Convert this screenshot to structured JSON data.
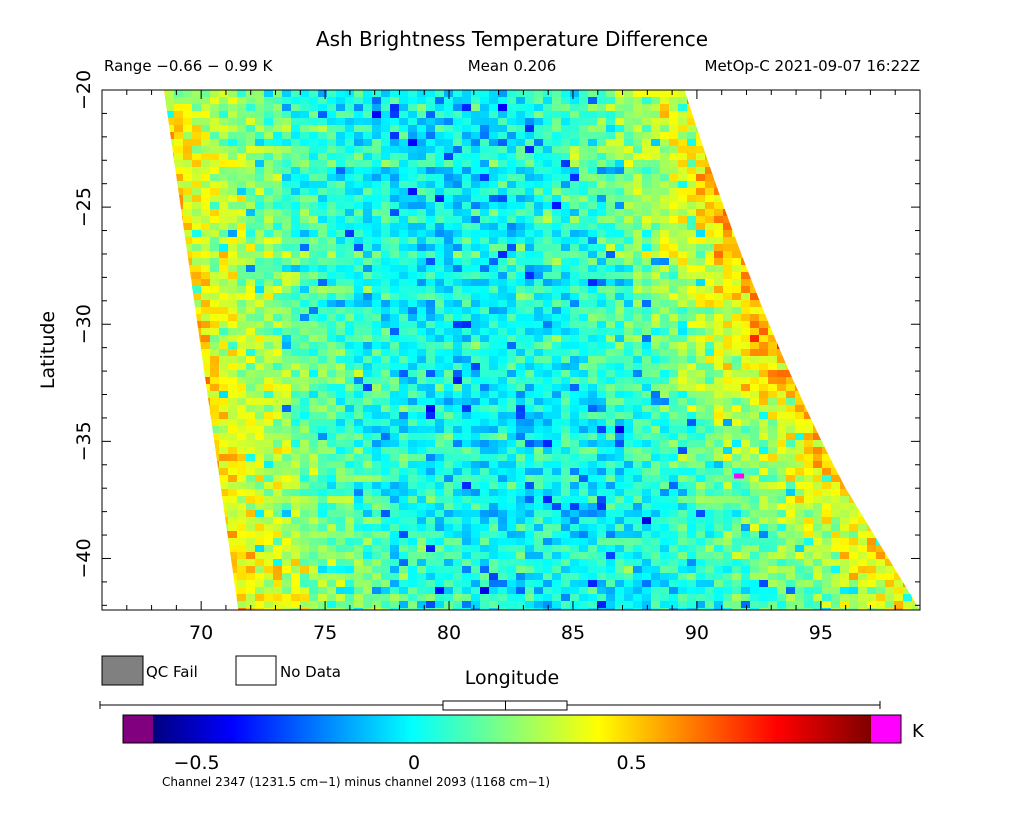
{
  "chart_data": {
    "type": "heatmap",
    "title": "Ash Brightness Temperature Difference",
    "header": {
      "range": "Range −0.66 − 0.99 K",
      "mean": "Mean 0.206",
      "satellite": "MetOp-C 2021-09-07 16:22Z"
    },
    "xlabel": "Longitude",
    "ylabel": "Latitude",
    "xlim": [
      66,
      99
    ],
    "ylim": [
      -42.2,
      -20
    ],
    "xticks": [
      70,
      75,
      80,
      85,
      90,
      95
    ],
    "yticks": [
      -20,
      -25,
      -30,
      -35,
      -40
    ],
    "swath": {
      "top_left": [
        68.5,
        -20
      ],
      "bottom_left": [
        71.5,
        -42.2
      ],
      "top_right": [
        89.5,
        -20
      ],
      "upper_right_mid": [
        92.5,
        -30
      ],
      "lower_right_mid": [
        96,
        -37
      ],
      "bottom_right": [
        99,
        -42.2
      ]
    },
    "value_range": [
      -0.66,
      0.99
    ],
    "mean": 0.206,
    "legend": {
      "qc_fail_label": "QC Fail",
      "no_data_label": "No Data",
      "qc_fail_color": "#808080",
      "no_data_color": "#ffffff"
    },
    "colorbar": {
      "min": -0.6,
      "max": 1.05,
      "under_color": "#800080",
      "over_color": "#ff00ff",
      "ticks": [
        -0.5,
        0,
        0.5
      ],
      "tick_labels": [
        "−0.5",
        "0",
        "0.5"
      ],
      "unit": "K",
      "range_box": [
        0.08,
        0.33
      ],
      "mean_marker": 0.206,
      "caption": "Channel 2347 (1231.5 cm−1) minus channel 2093 (1168 cm−1)"
    }
  }
}
